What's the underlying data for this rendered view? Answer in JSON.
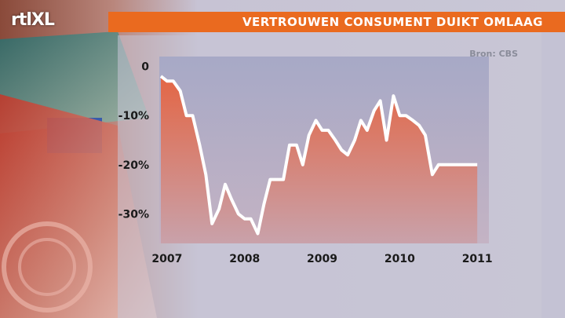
{
  "header": {
    "channel_logo": "rtlXL",
    "title": "VERTROUWEN CONSUMENT DUIKT OMLAAG"
  },
  "source": "Bron: CBS",
  "colors": {
    "title_bar": "#ea6a1f",
    "area_top": "#e8603a",
    "area_bottom": "#c9a0a8",
    "line": "#ffffff"
  },
  "chart_data": {
    "type": "area",
    "title": "VERTROUWEN CONSUMENT DUIKT OMLAAG",
    "xlabel": "",
    "ylabel": "",
    "yticks": [
      {
        "value": 0,
        "label": "0"
      },
      {
        "value": -10,
        "label": "-10%"
      },
      {
        "value": -20,
        "label": "-20%"
      },
      {
        "value": -30,
        "label": "-30%"
      }
    ],
    "xticks": [
      {
        "value": 2007.0,
        "label": "2007"
      },
      {
        "value": 2008.0,
        "label": "2008"
      },
      {
        "value": 2009.0,
        "label": "2009"
      },
      {
        "value": 2010.0,
        "label": "2010"
      },
      {
        "value": 2011.0,
        "label": "2011"
      }
    ],
    "xlim": [
      2006.9,
      2011.15
    ],
    "ylim": [
      -36,
      2
    ],
    "grid": false,
    "series": [
      {
        "x": [
          2006.92,
          2007.0,
          2007.08,
          2007.17,
          2007.25,
          2007.33,
          2007.42,
          2007.5,
          2007.58,
          2007.67,
          2007.75,
          2007.83,
          2007.92,
          2008.0,
          2008.08,
          2008.17,
          2008.25,
          2008.33,
          2008.42,
          2008.5,
          2008.58,
          2008.67,
          2008.75,
          2008.83,
          2008.92,
          2009.0,
          2009.08,
          2009.17,
          2009.25,
          2009.33,
          2009.42,
          2009.5,
          2009.58,
          2009.67,
          2009.75,
          2009.83,
          2009.92,
          2010.0,
          2010.08,
          2010.17,
          2010.25,
          2010.33,
          2010.42,
          2010.5,
          2010.58,
          2010.67,
          2010.75,
          2010.83,
          2010.92,
          2011.0,
          2011.08
        ],
        "y": [
          -2,
          -3,
          -3,
          -5,
          -10,
          -10,
          -16,
          -22,
          -32,
          -29,
          -24,
          -27,
          -30,
          -31,
          -31,
          -34,
          -28,
          -23,
          -23,
          -23,
          -16,
          -16,
          -20,
          -14,
          -11,
          -13,
          -13,
          -15,
          -17,
          -18,
          -15,
          -11,
          -13,
          -9,
          -7,
          -15,
          -6,
          -10,
          -10,
          -11,
          -12,
          -14,
          -22,
          -20,
          -20,
          -20,
          -20,
          -20,
          -20,
          -20,
          -20
        ],
        "values_note": ""
      }
    ]
  }
}
